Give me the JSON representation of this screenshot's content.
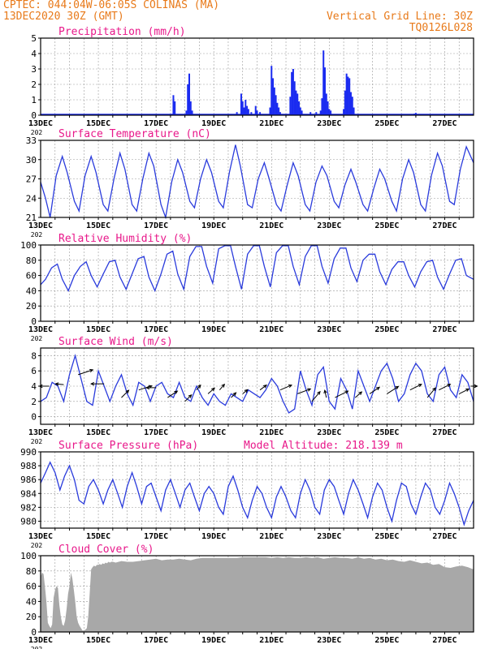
{
  "header": {
    "line1": "CPTEC:   044:04W-06:05S   COLINAS (MA)",
    "line2": "13DEC2020 30Z (GMT)",
    "right1": "Vertical Grid Line: 30Z",
    "right2": "TQ0126L028"
  },
  "colors": {
    "header": "#e87a1a",
    "title": "#e8188a",
    "line": "#2a3bdc",
    "bar": "#1a2bf0",
    "cloud": "#a8a8a8",
    "grid": "#999999"
  },
  "xaxis": {
    "ticks": [
      "13DEC",
      "15DEC",
      "17DEC",
      "19DEC",
      "21DEC",
      "23DEC",
      "25DEC",
      "27DEC"
    ],
    "tick_days": [
      0,
      2,
      4,
      6,
      8,
      10,
      12,
      14
    ],
    "range_days": [
      0,
      15
    ],
    "grid": "vertical dashed every 12h",
    "clipped_year": "202"
  },
  "chart_data": [
    {
      "id": "precip",
      "type": "bar",
      "title": "Precipitation (mm/h)",
      "ylim": [
        0,
        5
      ],
      "yticks": [
        0,
        1,
        2,
        3,
        4,
        5
      ],
      "bars": [
        [
          4.6,
          1.3
        ],
        [
          4.65,
          0.9
        ],
        [
          5.05,
          0.3
        ],
        [
          5.1,
          2.0
        ],
        [
          5.15,
          2.7
        ],
        [
          5.2,
          0.9
        ],
        [
          5.25,
          0.3
        ],
        [
          6.8,
          0.2
        ],
        [
          6.95,
          1.4
        ],
        [
          7.0,
          0.9
        ],
        [
          7.05,
          0.5
        ],
        [
          7.1,
          1.0
        ],
        [
          7.15,
          0.6
        ],
        [
          7.2,
          0.4
        ],
        [
          7.3,
          0.2
        ],
        [
          7.45,
          0.6
        ],
        [
          7.5,
          0.3
        ],
        [
          7.6,
          0.2
        ],
        [
          7.95,
          0.5
        ],
        [
          8.0,
          3.2
        ],
        [
          8.05,
          2.4
        ],
        [
          8.1,
          1.8
        ],
        [
          8.15,
          1.3
        ],
        [
          8.2,
          0.8
        ],
        [
          8.25,
          0.5
        ],
        [
          8.3,
          0.2
        ],
        [
          8.65,
          1.2
        ],
        [
          8.7,
          2.8
        ],
        [
          8.75,
          3.0
        ],
        [
          8.8,
          2.2
        ],
        [
          8.85,
          1.6
        ],
        [
          8.9,
          1.4
        ],
        [
          8.95,
          0.9
        ],
        [
          9.0,
          0.5
        ],
        [
          9.05,
          0.3
        ],
        [
          9.35,
          0.2
        ],
        [
          9.55,
          0.2
        ],
        [
          9.7,
          0.3
        ],
        [
          9.75,
          1.1
        ],
        [
          9.8,
          4.2
        ],
        [
          9.85,
          3.1
        ],
        [
          9.9,
          1.4
        ],
        [
          9.95,
          0.9
        ],
        [
          10.0,
          0.4
        ],
        [
          10.05,
          0.3
        ],
        [
          10.5,
          0.4
        ],
        [
          10.55,
          1.6
        ],
        [
          10.6,
          2.7
        ],
        [
          10.65,
          2.5
        ],
        [
          10.7,
          2.4
        ],
        [
          10.75,
          1.5
        ],
        [
          10.8,
          1.2
        ],
        [
          10.85,
          0.5
        ],
        [
          12.95,
          0.1
        ],
        [
          13.0,
          0.15
        ]
      ]
    },
    {
      "id": "temp",
      "type": "line",
      "title": "Surface Temperature (nC)",
      "ylim": [
        21,
        33
      ],
      "yticks": [
        21,
        24,
        27,
        30,
        33
      ],
      "x": [
        0,
        0.17,
        0.33,
        0.54,
        0.75,
        0.92,
        1.17,
        1.33,
        1.54,
        1.75,
        1.92,
        2.17,
        2.33,
        2.54,
        2.75,
        2.92,
        3.17,
        3.33,
        3.54,
        3.75,
        3.92,
        4.17,
        4.33,
        4.54,
        4.75,
        4.92,
        5.17,
        5.33,
        5.54,
        5.75,
        5.92,
        6.17,
        6.33,
        6.54,
        6.75,
        6.92,
        7.17,
        7.33,
        7.54,
        7.75,
        7.92,
        8.17,
        8.33,
        8.54,
        8.75,
        8.92,
        9.17,
        9.33,
        9.54,
        9.75,
        9.92,
        10.17,
        10.33,
        10.54,
        10.75,
        10.92,
        11.17,
        11.33,
        11.54,
        11.75,
        11.92,
        12.17,
        12.33,
        12.54,
        12.75,
        12.92,
        13.17,
        13.33,
        13.54,
        13.75,
        13.92,
        14.17,
        14.33,
        14.54,
        14.75,
        15.0
      ],
      "y": [
        26.5,
        24.0,
        21.0,
        27.5,
        30.5,
        28.0,
        23.5,
        22.0,
        27.5,
        30.5,
        28.0,
        23.0,
        22.0,
        27.0,
        31.0,
        28.5,
        23.0,
        22.0,
        27.0,
        31.0,
        29.0,
        23.0,
        21.0,
        26.5,
        30.0,
        28.0,
        23.5,
        22.5,
        27.0,
        30.0,
        28.0,
        23.5,
        22.5,
        28.0,
        32.3,
        29.0,
        23.0,
        22.5,
        27.0,
        29.5,
        27.0,
        23.0,
        22.0,
        26.0,
        29.5,
        27.5,
        23.0,
        22.0,
        26.5,
        29.0,
        27.5,
        23.5,
        22.5,
        26.0,
        28.5,
        26.5,
        23.0,
        22.0,
        25.5,
        28.5,
        27.0,
        23.5,
        22.0,
        27.0,
        30.0,
        28.0,
        23.0,
        22.0,
        27.5,
        31.0,
        29.0,
        23.5,
        23.0,
        28.5,
        32.0,
        29.5
      ]
    },
    {
      "id": "rh",
      "type": "line",
      "title": "Relative Humidity (%)",
      "ylim": [
        0,
        100
      ],
      "yticks": [
        0,
        20,
        40,
        60,
        80,
        100
      ],
      "x": [
        0,
        0.17,
        0.38,
        0.58,
        0.75,
        0.96,
        1.17,
        1.38,
        1.58,
        1.75,
        1.96,
        2.17,
        2.38,
        2.58,
        2.75,
        2.96,
        3.17,
        3.38,
        3.58,
        3.75,
        3.96,
        4.17,
        4.38,
        4.58,
        4.75,
        4.96,
        5.17,
        5.38,
        5.58,
        5.75,
        5.96,
        6.17,
        6.38,
        6.58,
        6.75,
        6.96,
        7.17,
        7.38,
        7.58,
        7.75,
        7.96,
        8.17,
        8.38,
        8.58,
        8.75,
        8.96,
        9.17,
        9.38,
        9.58,
        9.75,
        9.96,
        10.17,
        10.38,
        10.58,
        10.75,
        10.96,
        11.17,
        11.38,
        11.58,
        11.75,
        11.96,
        12.17,
        12.38,
        12.58,
        12.75,
        12.96,
        13.17,
        13.38,
        13.58,
        13.75,
        13.96,
        14.17,
        14.38,
        14.58,
        14.75,
        15.0
      ],
      "y": [
        48,
        55,
        70,
        75,
        55,
        40,
        60,
        72,
        78,
        60,
        45,
        62,
        78,
        80,
        58,
        42,
        62,
        82,
        85,
        58,
        40,
        62,
        88,
        92,
        62,
        42,
        85,
        98,
        98,
        72,
        50,
        95,
        99,
        99,
        72,
        42,
        88,
        99,
        99,
        72,
        45,
        90,
        99,
        99,
        72,
        48,
        85,
        99,
        99,
        72,
        50,
        82,
        96,
        96,
        70,
        52,
        80,
        88,
        88,
        65,
        48,
        68,
        78,
        78,
        60,
        45,
        65,
        78,
        80,
        58,
        42,
        62,
        80,
        82,
        60,
        55
      ]
    },
    {
      "id": "wind",
      "type": "line",
      "title": "Surface Wind (m/s)",
      "ylim": [
        -1,
        9
      ],
      "yticks": [
        0,
        2,
        4,
        6,
        8
      ],
      "x": [
        0,
        0.2,
        0.4,
        0.6,
        0.8,
        1.0,
        1.2,
        1.4,
        1.6,
        1.8,
        2.0,
        2.2,
        2.4,
        2.6,
        2.8,
        3.0,
        3.2,
        3.4,
        3.6,
        3.8,
        4.0,
        4.2,
        4.4,
        4.6,
        4.8,
        5.0,
        5.2,
        5.4,
        5.6,
        5.8,
        6.0,
        6.2,
        6.4,
        6.6,
        6.8,
        7.0,
        7.2,
        7.4,
        7.6,
        7.8,
        8.0,
        8.2,
        8.4,
        8.6,
        8.8,
        9.0,
        9.2,
        9.4,
        9.6,
        9.8,
        10.0,
        10.2,
        10.4,
        10.6,
        10.8,
        11.0,
        11.2,
        11.4,
        11.6,
        11.8,
        12.0,
        12.2,
        12.4,
        12.6,
        12.8,
        13.0,
        13.2,
        13.4,
        13.6,
        13.8,
        14.0,
        14.2,
        14.4,
        14.6,
        14.8,
        15.0
      ],
      "y": [
        2.0,
        2.5,
        4.5,
        4.0,
        2.0,
        5.5,
        8.0,
        5.0,
        2.0,
        1.5,
        6.0,
        4.0,
        2.0,
        4.0,
        5.5,
        3.0,
        1.5,
        4.5,
        4.0,
        2.0,
        4.0,
        4.5,
        3.0,
        2.5,
        4.5,
        2.5,
        2.0,
        4.0,
        2.5,
        1.5,
        3.0,
        2.0,
        1.5,
        3.0,
        2.5,
        2.0,
        3.5,
        3.0,
        2.5,
        3.5,
        5.0,
        4.0,
        2.0,
        0.5,
        1.0,
        6.0,
        3.5,
        1.5,
        5.5,
        6.5,
        2.0,
        1.0,
        5.0,
        3.5,
        1.0,
        6.0,
        4.0,
        2.0,
        4.0,
        6.0,
        7.0,
        5.0,
        2.0,
        3.0,
        5.5,
        7.0,
        6.0,
        3.0,
        2.0,
        5.5,
        6.5,
        3.5,
        2.5,
        5.5,
        4.5,
        2.0
      ],
      "arrows": [
        [
          0.3,
          4,
          -12,
          0
        ],
        [
          0.8,
          4.2,
          -10,
          -1
        ],
        [
          1.3,
          5.5,
          18,
          -6
        ],
        [
          2.2,
          4.3,
          -16,
          0
        ],
        [
          2.8,
          2.5,
          9,
          -9
        ],
        [
          3.4,
          3.5,
          16,
          -5
        ],
        [
          4.0,
          3.8,
          -12,
          0
        ],
        [
          4.4,
          2.5,
          12,
          -8
        ],
        [
          5.0,
          2.0,
          8,
          -8
        ],
        [
          5.4,
          3.5,
          5,
          -6
        ],
        [
          5.8,
          3.0,
          8,
          -7
        ],
        [
          6.2,
          3.5,
          6,
          -7
        ],
        [
          6.6,
          2.5,
          6,
          -6
        ],
        [
          7.0,
          3.0,
          6,
          -5
        ],
        [
          7.6,
          3.5,
          8,
          -6
        ],
        [
          8.3,
          3.5,
          14,
          -6
        ],
        [
          8.9,
          3.0,
          16,
          -6
        ],
        [
          9.4,
          2.0,
          10,
          -12
        ],
        [
          9.9,
          2.5,
          -2,
          -9
        ],
        [
          10.2,
          2.5,
          16,
          -8
        ],
        [
          10.9,
          2.5,
          8,
          -7
        ],
        [
          11.4,
          3.0,
          12,
          -8
        ],
        [
          12.0,
          3.0,
          14,
          -9
        ],
        [
          12.8,
          3.5,
          14,
          -7
        ],
        [
          13.4,
          2.5,
          10,
          -12
        ],
        [
          13.8,
          3.5,
          14,
          -7
        ],
        [
          14.5,
          3.0,
          12,
          -6
        ],
        [
          14.9,
          4.0,
          8,
          0
        ]
      ]
    },
    {
      "id": "press",
      "type": "line",
      "title": "Surface Pressure (hPa)",
      "extra": "Model Altitude: 218.139 m",
      "ylim": [
        979,
        990
      ],
      "yticks": [
        980,
        982,
        984,
        986,
        988,
        990
      ],
      "x": [
        0,
        0.17,
        0.33,
        0.5,
        0.67,
        0.83,
        1.0,
        1.17,
        1.33,
        1.5,
        1.67,
        1.83,
        2.0,
        2.17,
        2.33,
        2.5,
        2.67,
        2.83,
        3.0,
        3.17,
        3.33,
        3.5,
        3.67,
        3.83,
        4.0,
        4.17,
        4.33,
        4.5,
        4.67,
        4.83,
        5.0,
        5.17,
        5.33,
        5.5,
        5.67,
        5.83,
        6.0,
        6.17,
        6.33,
        6.5,
        6.67,
        6.83,
        7.0,
        7.17,
        7.33,
        7.5,
        7.67,
        7.83,
        8.0,
        8.17,
        8.33,
        8.5,
        8.67,
        8.83,
        9.0,
        9.17,
        9.33,
        9.5,
        9.67,
        9.83,
        10.0,
        10.17,
        10.33,
        10.5,
        10.67,
        10.83,
        11.0,
        11.17,
        11.33,
        11.5,
        11.67,
        11.83,
        12.0,
        12.17,
        12.33,
        12.5,
        12.67,
        12.83,
        13.0,
        13.17,
        13.33,
        13.5,
        13.67,
        13.83,
        14.0,
        14.17,
        14.33,
        14.5,
        14.67,
        14.83,
        15.0
      ],
      "y": [
        985.5,
        987.0,
        988.5,
        987.0,
        984.5,
        986.5,
        988.0,
        986.0,
        983.0,
        982.5,
        985.0,
        986.0,
        984.5,
        982.5,
        984.5,
        986.0,
        984.0,
        982.0,
        985.0,
        987.0,
        985.0,
        982.5,
        985.0,
        985.5,
        983.5,
        981.5,
        984.5,
        986.0,
        984.0,
        982.0,
        984.5,
        985.5,
        983.5,
        981.5,
        984.0,
        985.0,
        984.0,
        982.0,
        981.0,
        985.0,
        986.5,
        984.5,
        982.0,
        980.5,
        983.0,
        985.0,
        984.0,
        982.0,
        980.5,
        983.5,
        985.0,
        983.5,
        981.5,
        980.5,
        984.0,
        986.0,
        984.5,
        982.0,
        981.0,
        984.5,
        986.0,
        985.0,
        983.0,
        981.0,
        984.0,
        986.0,
        984.5,
        982.5,
        980.5,
        983.5,
        985.5,
        984.5,
        982.0,
        980.0,
        983.0,
        985.5,
        985.0,
        982.5,
        981.0,
        983.5,
        985.5,
        984.5,
        982.0,
        981.0,
        983.0,
        985.5,
        984.0,
        982.0,
        979.5,
        981.5,
        983.0
      ]
    },
    {
      "id": "cloud",
      "type": "area",
      "title": "Cloud Cover (%)",
      "ylim": [
        0,
        100
      ],
      "yticks": [
        0,
        20,
        40,
        60,
        80,
        100
      ],
      "x": [
        0,
        0.05,
        0.1,
        0.15,
        0.2,
        0.25,
        0.3,
        0.35,
        0.4,
        0.45,
        0.5,
        0.55,
        0.6,
        0.65,
        0.7,
        0.75,
        0.8,
        0.85,
        0.9,
        0.95,
        1.0,
        1.05,
        1.1,
        1.15,
        1.2,
        1.25,
        1.3,
        1.35,
        1.4,
        1.45,
        1.5,
        1.55,
        1.6,
        1.65,
        1.7,
        1.75,
        1.8,
        1.85,
        1.9,
        1.95,
        2.0,
        2.05,
        2.1,
        2.15,
        2.2,
        2.25,
        2.3,
        2.35,
        2.4,
        2.45,
        2.5,
        2.6,
        2.8,
        3.0,
        3.2,
        3.4,
        3.6,
        3.8,
        4.0,
        4.2,
        4.4,
        4.6,
        4.8,
        5.0,
        5.2,
        5.4,
        5.6,
        5.8,
        6.0,
        6.2,
        6.4,
        6.6,
        6.8,
        7.0,
        7.2,
        7.4,
        7.6,
        7.8,
        8.0,
        8.2,
        8.4,
        8.6,
        8.8,
        9.0,
        9.2,
        9.4,
        9.6,
        9.8,
        10.0,
        10.2,
        10.4,
        10.6,
        10.8,
        11.0,
        11.2,
        11.4,
        11.6,
        11.8,
        12.0,
        12.2,
        12.4,
        12.6,
        12.8,
        13.0,
        13.2,
        13.4,
        13.6,
        13.8,
        14.0,
        14.2,
        14.4,
        14.6,
        14.8,
        15.0
      ],
      "y": [
        72,
        78,
        76,
        60,
        40,
        12,
        8,
        5,
        10,
        45,
        55,
        60,
        58,
        35,
        20,
        10,
        8,
        15,
        30,
        50,
        60,
        78,
        70,
        55,
        40,
        20,
        12,
        8,
        5,
        2,
        2,
        3,
        5,
        20,
        50,
        82,
        85,
        87,
        86,
        88,
        88,
        89,
        88,
        90,
        89,
        91,
        90,
        92,
        91,
        92,
        92,
        91,
        93,
        92,
        92,
        93,
        94,
        95,
        96,
        94,
        95,
        95,
        96,
        95,
        94,
        96,
        97,
        97,
        97,
        97,
        97,
        97,
        97,
        98,
        98,
        98,
        98,
        98,
        97,
        98,
        97,
        98,
        97,
        97,
        98,
        97,
        98,
        96,
        97,
        98,
        97,
        97,
        96,
        98,
        96,
        97,
        95,
        96,
        94,
        95,
        93,
        92,
        94,
        92,
        90,
        91,
        88,
        89,
        85,
        84,
        86,
        87,
        85,
        82
      ]
    }
  ]
}
